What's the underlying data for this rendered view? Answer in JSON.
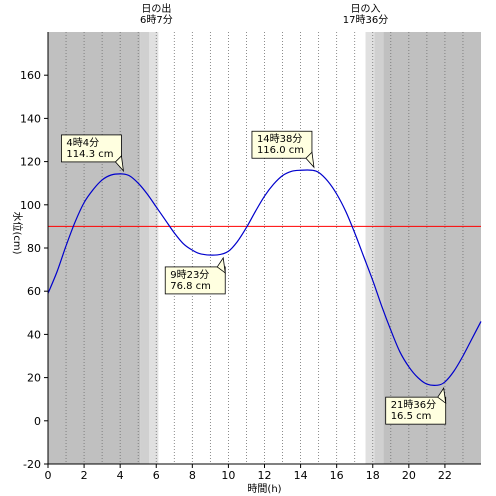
{
  "chart_data": {
    "type": "line",
    "xlabel": "時間(h)",
    "ylabel": "水位(cm)",
    "xlim": [
      0,
      24
    ],
    "ylim": [
      -20,
      180
    ],
    "x_ticks": [
      0,
      2,
      4,
      6,
      8,
      10,
      12,
      14,
      16,
      18,
      20,
      22
    ],
    "x_tick_labels": [
      "0",
      "2",
      "4",
      "6",
      "8",
      "10",
      "12",
      "14",
      "16",
      "18",
      "20",
      "22"
    ],
    "y_ticks": [
      -20,
      0,
      20,
      40,
      60,
      80,
      100,
      120,
      140,
      160
    ],
    "y_tick_labels": [
      "-20",
      "0",
      "20",
      "40",
      "60",
      "80",
      "100",
      "120",
      "140",
      "160"
    ],
    "vertical_grid": "dotted, every 1 hour",
    "reference_line": {
      "y": 90,
      "color": "#ff0000"
    },
    "sunrise": {
      "label": "日の出",
      "time_label": "6時7分",
      "hour": 6.1167
    },
    "sunset": {
      "label": "日の入",
      "time_label": "17時36分",
      "hour": 17.6
    },
    "night_color": "#c0c0c0",
    "twilight_color": "#e0e0e0",
    "line_color": "#0000cc",
    "series": [
      {
        "x": [
          0,
          0.5,
          1,
          1.5,
          2,
          2.5,
          3,
          3.5,
          4.07,
          4.5,
          5,
          5.5,
          6,
          6.5,
          7,
          7.5,
          8,
          8.5,
          9.38,
          10,
          10.5,
          11,
          11.5,
          12,
          12.5,
          13,
          13.5,
          14,
          14.63,
          15,
          15.5,
          16,
          16.5,
          17,
          17.5,
          18,
          18.5,
          19,
          19.5,
          20,
          20.5,
          21,
          21.6,
          22,
          22.5,
          23,
          23.5,
          24
        ],
        "values": [
          59,
          69,
          81,
          92,
          101,
          107,
          111.5,
          113.8,
          114.3,
          113.5,
          110,
          105,
          99,
          93,
          87,
          82,
          79,
          77.2,
          76.8,
          78.5,
          83,
          89.5,
          97,
          104,
          109.5,
          113.5,
          115.5,
          116.0,
          116.0,
          115,
          111,
          105,
          97,
          87,
          76,
          65,
          53,
          42,
          32,
          25,
          20,
          17,
          16.5,
          18,
          23,
          30,
          38,
          46
        ]
      }
    ],
    "annotations": [
      {
        "time_label": "4時4分",
        "value_label": "114.3 cm",
        "x": 4.07,
        "y": 114.3,
        "side": "above"
      },
      {
        "time_label": "9時23分",
        "value_label": "76.8 cm",
        "x": 9.38,
        "y": 76.8,
        "side": "below"
      },
      {
        "time_label": "14時38分",
        "value_label": "116.0 cm",
        "x": 14.63,
        "y": 116.0,
        "side": "above"
      },
      {
        "time_label": "21時36分",
        "value_label": "16.5 cm",
        "x": 21.6,
        "y": 16.5,
        "side": "below"
      }
    ]
  }
}
